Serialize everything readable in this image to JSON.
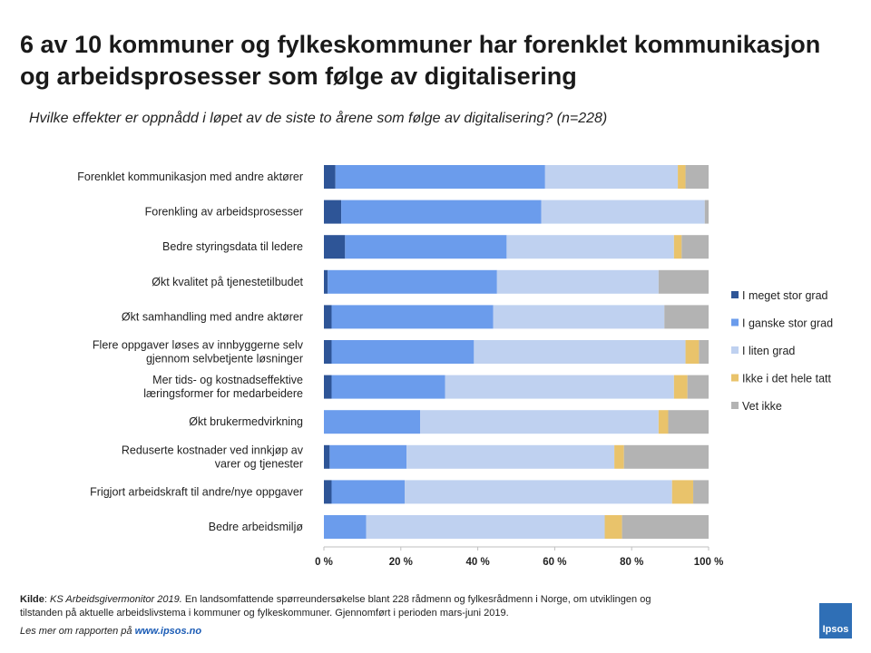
{
  "title": "6 av 10 kommuner og fylkeskommuner har forenklet kommunikasjon og arbeidsprosesser som følge av digitalisering",
  "subtitle": "Hvilke effekter er oppnådd i løpet av de siste to årene som følge av digitalisering? (n=228)",
  "chart_data": {
    "type": "bar",
    "orientation": "horizontal",
    "stacked": "percent",
    "xlim": [
      0,
      100
    ],
    "x_ticks": [
      "0 %",
      "20 %",
      "40 %",
      "60 %",
      "80 %",
      "100 %"
    ],
    "legend_position": "right",
    "categories": [
      [
        "Forenklet kommunikasjon med andre aktører"
      ],
      [
        "Forenkling av arbeidsprosesser"
      ],
      [
        "Bedre styringsdata til ledere"
      ],
      [
        "Økt kvalitet på tjenestetilbudet"
      ],
      [
        "Økt samhandling med andre aktører"
      ],
      [
        "Flere oppgaver løses av innbyggerne selv",
        "gjennom selvbetjente løsninger"
      ],
      [
        "Mer tids- og kostnadseffektive",
        "læringsformer for medarbeidere"
      ],
      [
        "Økt brukermedvirkning"
      ],
      [
        "Reduserte kostnader ved innkjøp av",
        "varer og tjenester"
      ],
      [
        "Frigjort arbeidskraft til andre/nye oppgaver"
      ],
      [
        "Bedre arbeidsmiljø"
      ]
    ],
    "series": [
      {
        "name": "I meget stor grad",
        "color": "#2e5597",
        "values": [
          3,
          4.5,
          5.5,
          1,
          2,
          2,
          2,
          0,
          1.5,
          2,
          0
        ]
      },
      {
        "name": "I ganske stor grad",
        "color": "#6b9cec",
        "values": [
          54.5,
          52,
          42,
          44,
          42,
          37,
          29.5,
          25,
          20,
          19,
          11
        ]
      },
      {
        "name": "I liten grad",
        "color": "#bfd1f0",
        "values": [
          34.5,
          42.5,
          43.5,
          42,
          44.5,
          55,
          59.5,
          62,
          54,
          69.5,
          62
        ]
      },
      {
        "name": "Ikke i det hele tatt",
        "color": "#e9c36b",
        "values": [
          2,
          0,
          2,
          0,
          0,
          3.5,
          3.5,
          2.5,
          2.5,
          5.5,
          4.5
        ]
      },
      {
        "name": "Vet ikke",
        "color": "#b3b3b3",
        "values": [
          6,
          1,
          7,
          13,
          11.5,
          2.5,
          5.5,
          10.5,
          22,
          4,
          22.5
        ]
      }
    ]
  },
  "source": {
    "label": "Kilde",
    "publication": "KS Arbeidsgivermonitor 2019.",
    "text": "En landsomfattende spørreundersøkelse blant 228 rådmenn og fylkesrådmenn i Norge, om utviklingen og tilstanden på aktuelle arbeidslivstema i kommuner og fylkeskommuner. Gjennomført i perioden mars-juni 2019."
  },
  "read_more": {
    "text": "Les mer om rapporten på",
    "url": "www.ipsos.no"
  },
  "logo": {
    "text": "Ipsos",
    "color": "#2f6fb6"
  }
}
